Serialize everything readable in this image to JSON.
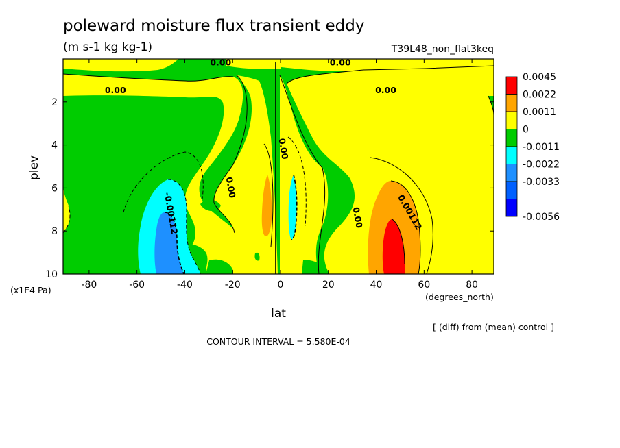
{
  "chart_data": {
    "type": "contour",
    "title": "poleward moisture flux transient eddy",
    "units": "(m s-1 kg kg-1)",
    "run_label": "T39L48_non_flat3keq",
    "xlabel": "lat",
    "x_units": "(degrees_north)",
    "ylabel": "plev",
    "y_units": "(x1E4 Pa)",
    "xlim": [
      -90,
      90
    ],
    "ylim": [
      0,
      10
    ],
    "y_inverted": true,
    "x_ticks": [
      "-80",
      "-60",
      "-40",
      "-20",
      "0",
      "20",
      "40",
      "60",
      "80"
    ],
    "x_tick_values": [
      -80,
      -60,
      -40,
      -20,
      0,
      20,
      40,
      60,
      80
    ],
    "y_ticks": [
      "2",
      "4",
      "6",
      "8",
      "10"
    ],
    "y_tick_values": [
      2,
      4,
      6,
      8,
      10
    ],
    "note": "[ (diff) from (mean) control ]",
    "contour_interval_text": "CONTOUR INTERVAL = 5.580E-04",
    "colorbar": {
      "levels": [
        {
          "label": "0.0045",
          "color": "#ff0000"
        },
        {
          "label": "0.0022",
          "color": "#ffa500"
        },
        {
          "label": "0.0011",
          "color": "#ffff00"
        },
        {
          "label": "0",
          "color": "#00cc00"
        },
        {
          "label": "-0.0011",
          "color": "#00ffff"
        },
        {
          "label": "-0.0022",
          "color": "#1e90ff"
        },
        {
          "label": "-0.0033",
          "color": "#0060ff"
        },
        {
          "label": "-0.0056",
          "color": "#0000ff"
        }
      ]
    },
    "contour_labels": [
      {
        "text": "0.00",
        "lat": -69,
        "plev": 1.6
      },
      {
        "text": "0.00",
        "lat": -25,
        "plev": 0.3
      },
      {
        "text": "0.00",
        "lat": 25,
        "plev": 0.3
      },
      {
        "text": "0.00",
        "lat": 44,
        "plev": 1.6
      },
      {
        "text": "0.00",
        "lat": 0,
        "plev": 4.2
      },
      {
        "text": "0.00",
        "lat": -22,
        "plev": 6.0
      },
      {
        "text": "0.00",
        "lat": 31,
        "plev": 7.4
      },
      {
        "text": "-0.00112",
        "lat": -47,
        "plev": 7.2
      },
      {
        "text": "0.00112",
        "lat": 53,
        "plev": 7.2
      }
    ]
  }
}
